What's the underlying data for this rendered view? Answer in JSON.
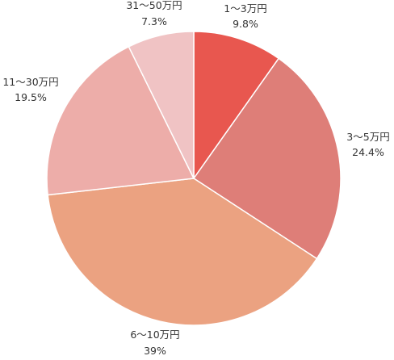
{
  "chart_data": {
    "type": "pie",
    "title": "",
    "categories": [
      "1～3万円",
      "3～5万円",
      "6～10万円",
      "11～30万円",
      "31～50万円"
    ],
    "values": [
      9.8,
      24.4,
      39,
      19.5,
      7.3
    ],
    "value_labels": [
      "9.8%",
      "24.4%",
      "39%",
      "19.5%",
      "7.3%"
    ],
    "colors": [
      "#e8574f",
      "#de7e78",
      "#eba281",
      "#edada9",
      "#f0c3c4"
    ],
    "start_angle": "12 o'clock",
    "direction": "clockwise",
    "legend": "none"
  }
}
